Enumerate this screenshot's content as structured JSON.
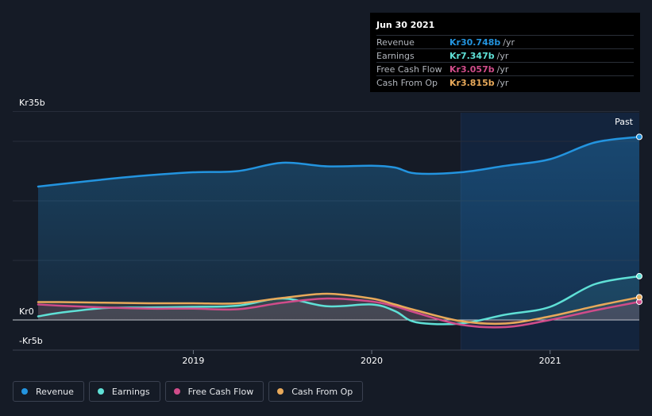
{
  "tooltip": {
    "date": "Jun 30 2021",
    "rows": [
      {
        "name": "Revenue",
        "value": "Kr30.748b",
        "unit": "/yr",
        "color": "#2394df"
      },
      {
        "name": "Earnings",
        "value": "Kr7.347b",
        "unit": "/yr",
        "color": "#5fe0d6"
      },
      {
        "name": "Free Cash Flow",
        "value": "Kr3.057b",
        "unit": "/yr",
        "color": "#d04c8a"
      },
      {
        "name": "Cash From Op",
        "value": "Kr3.815b",
        "unit": "/yr",
        "color": "#e8a95a"
      }
    ]
  },
  "past_label": "Past",
  "legend": [
    {
      "name": "Revenue",
      "color": "#2394df"
    },
    {
      "name": "Earnings",
      "color": "#5fe0d6"
    },
    {
      "name": "Free Cash Flow",
      "color": "#d04c8a"
    },
    {
      "name": "Cash From Op",
      "color": "#e8a95a"
    }
  ],
  "chart_data": {
    "type": "line",
    "y_tick_labels": [
      "Kr35b",
      "Kr0",
      "-Kr5b"
    ],
    "y_tick_values": [
      35,
      0,
      -5
    ],
    "ylim": [
      -5,
      35
    ],
    "x_tick_labels": [
      "2019",
      "2020",
      "2021"
    ],
    "x_tick_values": [
      2019.0,
      2020.0,
      2021.0
    ],
    "xlim": [
      2018.13,
      2021.5
    ],
    "highlight_start": 2020.5,
    "x": [
      2018.13,
      2018.25,
      2018.5,
      2018.75,
      2019.0,
      2019.25,
      2019.5,
      2019.75,
      2020.0,
      2020.13,
      2020.25,
      2020.5,
      2020.75,
      2021.0,
      2021.25,
      2021.5
    ],
    "series": [
      {
        "name": "Revenue",
        "color": "#2394df",
        "values": [
          22.4,
          22.8,
          23.6,
          24.3,
          24.8,
          25.0,
          26.4,
          25.8,
          25.9,
          25.6,
          24.6,
          24.8,
          25.9,
          27.0,
          29.8,
          30.748
        ]
      },
      {
        "name": "Earnings",
        "color": "#5fe0d6",
        "values": [
          0.6,
          1.2,
          2.0,
          2.1,
          2.2,
          2.4,
          3.6,
          2.3,
          2.6,
          1.5,
          -0.4,
          -0.6,
          0.9,
          2.2,
          6.0,
          7.347
        ]
      },
      {
        "name": "Free Cash Flow",
        "color": "#d04c8a",
        "values": [
          2.6,
          2.4,
          2.1,
          1.9,
          1.9,
          1.8,
          2.9,
          3.6,
          3.1,
          2.3,
          1.2,
          -0.8,
          -1.2,
          0.0,
          1.6,
          3.057
        ]
      },
      {
        "name": "Cash From Op",
        "color": "#e8a95a",
        "values": [
          3.0,
          3.0,
          2.9,
          2.8,
          2.8,
          2.8,
          3.7,
          4.4,
          3.6,
          2.6,
          1.6,
          -0.2,
          -0.6,
          0.6,
          2.3,
          3.815
        ]
      }
    ]
  }
}
